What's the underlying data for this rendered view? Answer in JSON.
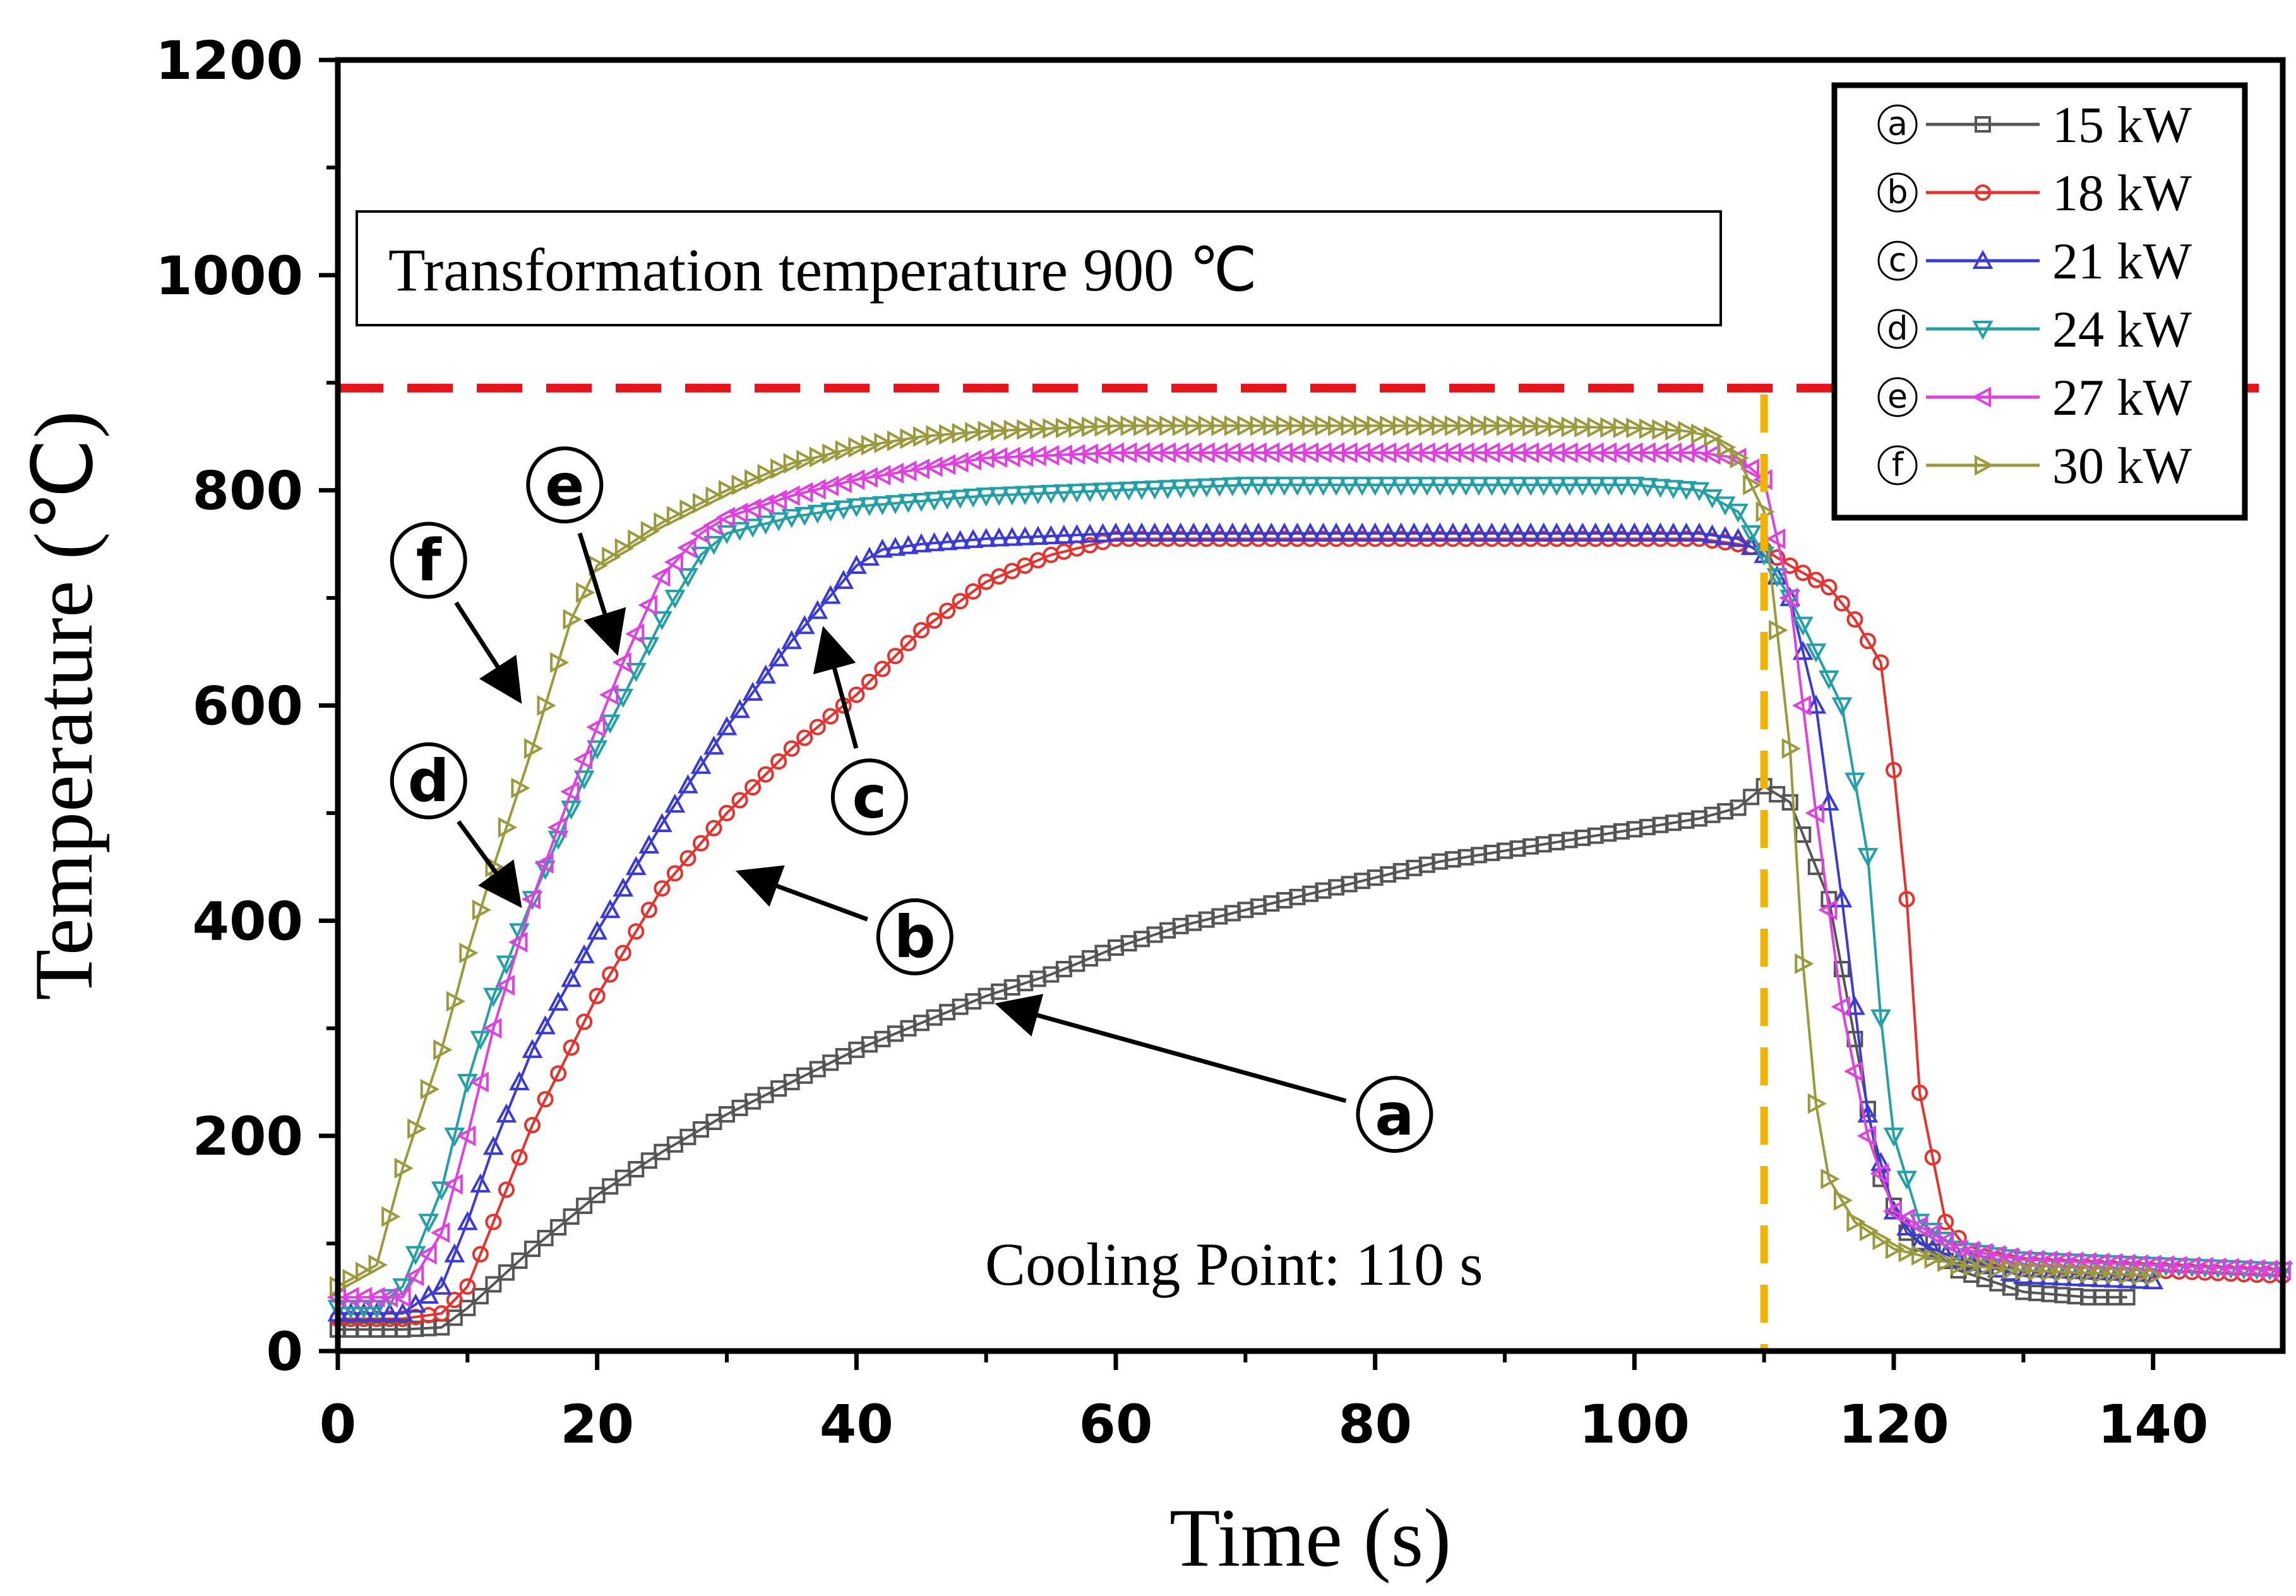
{
  "chart_data": {
    "type": "line",
    "xlabel": "Time (s)",
    "ylabel": "Temperature (℃)",
    "xlim": [
      0,
      150
    ],
    "ylim": [
      0,
      1200
    ],
    "xticks": [
      "0",
      "20",
      "40",
      "60",
      "80",
      "100",
      "120",
      "140"
    ],
    "yticks": [
      "0",
      "200",
      "400",
      "600",
      "800",
      "1000",
      "1200"
    ],
    "grid": false,
    "legend_position": "top-right",
    "reference_lines": {
      "transformation_temperature_y": 895,
      "cooling_point_x": 110
    },
    "series": [
      {
        "name": "15 kW",
        "letter": "ⓐ",
        "color": "#555555",
        "marker": "square",
        "x": [
          0,
          5,
          8,
          10,
          15,
          20,
          25,
          30,
          35,
          40,
          45,
          50,
          55,
          60,
          65,
          70,
          75,
          80,
          85,
          90,
          95,
          100,
          105,
          108,
          110,
          112,
          115,
          117,
          119,
          121,
          125,
          130,
          135,
          138
        ],
        "y": [
          20,
          20,
          22,
          40,
          95,
          145,
          185,
          220,
          250,
          280,
          305,
          330,
          350,
          375,
          395,
          410,
          425,
          440,
          455,
          465,
          475,
          485,
          495,
          505,
          525,
          510,
          420,
          290,
          160,
          110,
          75,
          55,
          50,
          50
        ]
      },
      {
        "name": "18 kW",
        "letter": "ⓑ",
        "color": "#e8302c",
        "marker": "circle",
        "x": [
          0,
          5,
          8,
          10,
          12,
          15,
          20,
          25,
          30,
          35,
          40,
          45,
          50,
          55,
          60,
          70,
          80,
          90,
          100,
          105,
          108,
          110,
          112,
          115,
          117,
          119,
          120,
          121,
          122,
          124,
          126,
          130,
          140,
          150
        ],
        "y": [
          30,
          30,
          35,
          60,
          120,
          210,
          330,
          430,
          500,
          560,
          610,
          670,
          715,
          740,
          755,
          755,
          755,
          755,
          755,
          755,
          750,
          745,
          730,
          710,
          680,
          640,
          540,
          420,
          240,
          120,
          90,
          80,
          75,
          70
        ]
      },
      {
        "name": "21 kW",
        "letter": "ⓒ",
        "color": "#3a3ad8",
        "marker": "triangle-up",
        "x": [
          0,
          5,
          8,
          10,
          12,
          15,
          20,
          25,
          30,
          35,
          40,
          42,
          45,
          50,
          60,
          70,
          80,
          90,
          100,
          105,
          108,
          110,
          112,
          114,
          116,
          118,
          120,
          122,
          125,
          130,
          140
        ],
        "y": [
          35,
          35,
          60,
          120,
          190,
          280,
          390,
          490,
          580,
          660,
          730,
          745,
          750,
          755,
          760,
          760,
          760,
          760,
          760,
          760,
          755,
          740,
          700,
          600,
          420,
          220,
          130,
          100,
          85,
          70,
          65
        ]
      },
      {
        "name": "24 kW",
        "letter": "ⓓ",
        "color": "#22a0a8",
        "marker": "triangle-down",
        "x": [
          0,
          3,
          5,
          8,
          10,
          12,
          15,
          20,
          25,
          28,
          30,
          35,
          40,
          45,
          50,
          60,
          70,
          80,
          90,
          100,
          105,
          108,
          110,
          112,
          114,
          116,
          118,
          119,
          120,
          122,
          125,
          130,
          140,
          150
        ],
        "y": [
          40,
          40,
          60,
          150,
          250,
          330,
          420,
          560,
          680,
          740,
          760,
          775,
          785,
          790,
          795,
          800,
          805,
          805,
          805,
          805,
          800,
          780,
          740,
          700,
          650,
          600,
          460,
          310,
          200,
          120,
          95,
          85,
          80,
          75
        ]
      },
      {
        "name": "27 kW",
        "letter": "ⓔ",
        "color": "#e040e0",
        "marker": "triangle-left",
        "x": [
          0,
          5,
          8,
          10,
          12,
          15,
          18,
          20,
          22,
          25,
          28,
          30,
          35,
          40,
          45,
          50,
          60,
          70,
          80,
          90,
          100,
          105,
          108,
          110,
          112,
          114,
          116,
          118,
          120,
          125,
          130,
          140,
          150
        ],
        "y": [
          50,
          50,
          110,
          200,
          300,
          420,
          520,
          580,
          640,
          720,
          760,
          775,
          795,
          810,
          820,
          830,
          835,
          835,
          835,
          835,
          835,
          835,
          830,
          810,
          700,
          500,
          320,
          200,
          130,
          95,
          85,
          80,
          75
        ]
      },
      {
        "name": "30 kW",
        "letter": "ⓕ",
        "color": "#9a9a3c",
        "marker": "triangle-right",
        "x": [
          0,
          3,
          5,
          8,
          10,
          12,
          15,
          18,
          20,
          25,
          30,
          35,
          40,
          45,
          50,
          60,
          70,
          80,
          90,
          100,
          104,
          106,
          108,
          110,
          112,
          113,
          114,
          115,
          117,
          120,
          125,
          130,
          140
        ],
        "y": [
          60,
          80,
          170,
          280,
          370,
          450,
          560,
          680,
          730,
          770,
          800,
          825,
          840,
          850,
          855,
          860,
          860,
          860,
          860,
          858,
          855,
          850,
          830,
          780,
          560,
          360,
          230,
          160,
          120,
          95,
          80,
          75,
          70
        ]
      }
    ],
    "callouts": [
      {
        "label": "ⓐ",
        "text_x": 81.5,
        "text_y": 220,
        "tip_x": 51,
        "tip_y": 322
      },
      {
        "label": "ⓑ",
        "text_x": 44.5,
        "text_y": 385,
        "tip_x": 31,
        "tip_y": 445
      },
      {
        "label": "ⓒ",
        "text_x": 41,
        "text_y": 515,
        "tip_x": 37.5,
        "tip_y": 670
      },
      {
        "label": "ⓓ",
        "text_x": 7,
        "text_y": 530,
        "tip_x": 14,
        "tip_y": 415
      },
      {
        "label": "ⓔ",
        "text_x": 17.5,
        "text_y": 805,
        "tip_x": 21.5,
        "tip_y": 650
      },
      {
        "label": "ⓕ",
        "text_x": 7,
        "text_y": 735,
        "tip_x": 14,
        "tip_y": 605
      }
    ]
  },
  "annotations": {
    "transformation_label": "Transformation temperature 900 ℃",
    "cooling_label": "Cooling Point: 110 s"
  },
  "colors": {
    "transformation_line": "#e8141c",
    "cooling_line": "#f0b400"
  }
}
